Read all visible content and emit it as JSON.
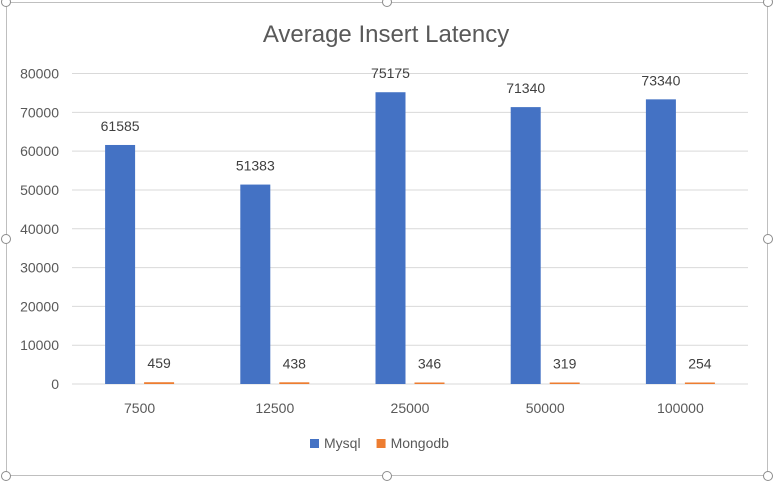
{
  "chart_data": {
    "type": "bar",
    "title": "Average Insert Latency",
    "xlabel": "",
    "ylabel": "",
    "categories": [
      "7500",
      "12500",
      "25000",
      "50000",
      "100000"
    ],
    "series": [
      {
        "name": "Mysql",
        "color": "#4472c4",
        "values": [
          61585,
          51383,
          75175,
          71340,
          73340
        ]
      },
      {
        "name": "Mongodb",
        "color": "#ed7d31",
        "values": [
          459,
          438,
          346,
          319,
          254
        ]
      }
    ],
    "ylim": [
      0,
      80000
    ],
    "yticks": [
      0,
      10000,
      20000,
      30000,
      40000,
      50000,
      60000,
      70000,
      80000
    ],
    "grid": true,
    "legend_position": "bottom"
  }
}
